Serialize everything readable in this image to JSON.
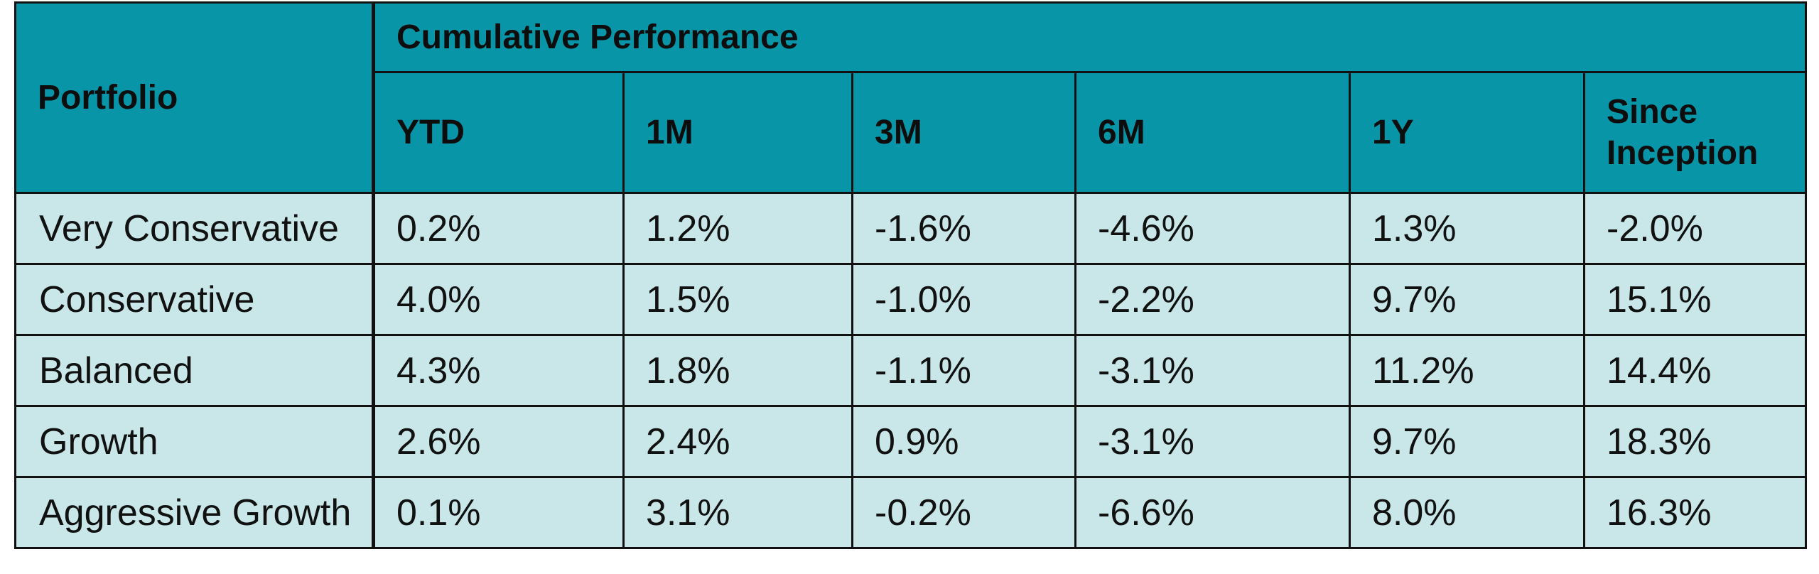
{
  "table": {
    "header": {
      "portfolio_label": "Portfolio",
      "group_label": "Cumulative Performance",
      "periods": [
        "YTD",
        "1M",
        "3M",
        "6M",
        "1Y",
        "Since Inception"
      ]
    },
    "rows": [
      {
        "portfolio": "Very Conservative",
        "values": [
          "0.2%",
          "1.2%",
          "-1.6%",
          "-4.6%",
          "1.3%",
          "-2.0%"
        ]
      },
      {
        "portfolio": "Conservative",
        "values": [
          "4.0%",
          "1.5%",
          "-1.0%",
          "-2.2%",
          "9.7%",
          "15.1%"
        ]
      },
      {
        "portfolio": "Balanced",
        "values": [
          "4.3%",
          "1.8%",
          "-1.1%",
          "-3.1%",
          "11.2%",
          "14.4%"
        ]
      },
      {
        "portfolio": "Growth",
        "values": [
          "2.6%",
          "2.4%",
          "0.9%",
          "-3.1%",
          "9.7%",
          "18.3%"
        ]
      },
      {
        "portfolio": "Aggressive Growth",
        "values": [
          "0.1%",
          "3.1%",
          "-0.2%",
          "-6.6%",
          "8.0%",
          "16.3%"
        ]
      }
    ],
    "colors": {
      "header_bg": "#0795a7",
      "body_bg": "#c9e7e8",
      "border": "#111111"
    }
  }
}
